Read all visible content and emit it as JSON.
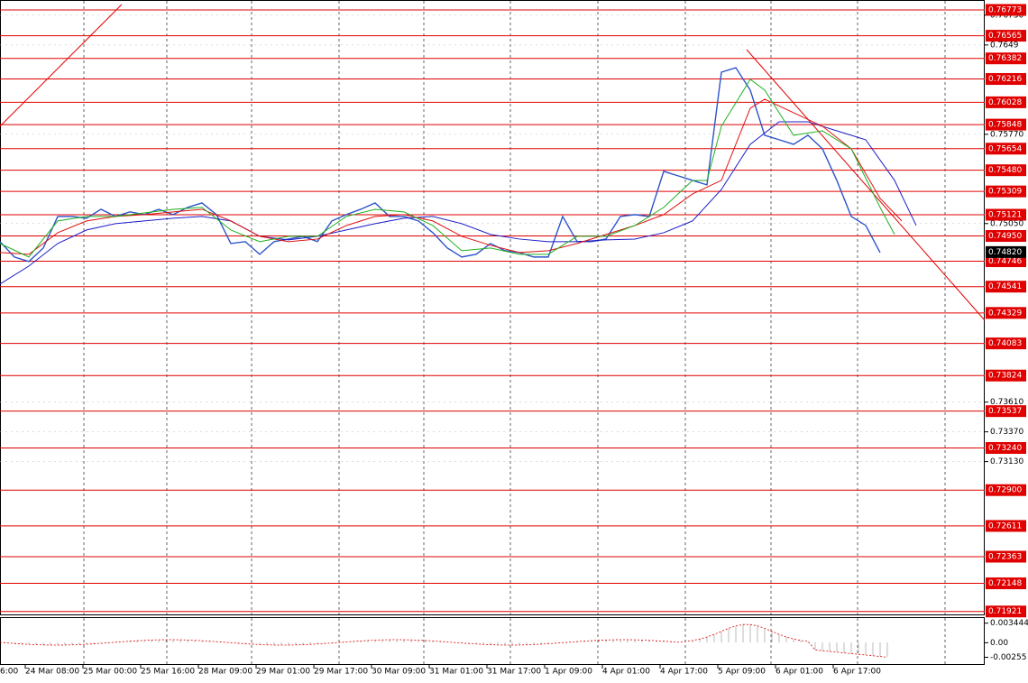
{
  "chart_data": {
    "type": "line",
    "xlim": [
      -7,
      266
    ],
    "xticks": [
      {
        "value": -16,
        "label": "6:00"
      },
      {
        "value": 0,
        "label": "24 Mar 08:00"
      },
      {
        "value": 16,
        "label": "25 Mar 00:00"
      },
      {
        "value": 32,
        "label": "25 Mar 16:00"
      },
      {
        "value": 48,
        "label": "28 Mar 09:00"
      },
      {
        "value": 64,
        "label": "29 Mar 01:00"
      },
      {
        "value": 80,
        "label": "29 Mar 17:00"
      },
      {
        "value": 96,
        "label": "30 Mar 09:00"
      },
      {
        "value": 112,
        "label": "31 Mar 01:00"
      },
      {
        "value": 128,
        "label": "31 Mar 17:00"
      },
      {
        "value": 144,
        "label": "1 Apr 09:00"
      },
      {
        "value": 160,
        "label": "4 Apr 01:00"
      },
      {
        "value": 176,
        "label": "4 Apr 17:00"
      },
      {
        "value": 192,
        "label": "5 Apr 09:00"
      },
      {
        "value": 208,
        "label": "6 Apr 01:00"
      },
      {
        "value": 224,
        "label": "6 Apr 17:00"
      }
    ],
    "ylim": [
      0.7189,
      0.76853
    ],
    "yticks": [
      {
        "value": 0.7673,
        "label": "0.76730"
      },
      0.7649,
      {
        "value": 0.7577,
        "label": "0.75770"
      },
      {
        "value": 0.7505,
        "label": "0.75050"
      },
      {
        "value": 0.7361,
        "label": "0.73610"
      },
      {
        "value": 0.7337,
        "label": "0.73370"
      },
      {
        "value": 0.7313,
        "label": "0.73130"
      }
    ],
    "grid": true,
    "x": [
      -7,
      -3,
      1,
      5,
      9,
      13,
      17,
      21,
      25,
      29,
      33,
      37,
      41,
      45,
      49,
      53,
      57,
      61,
      65,
      69,
      73,
      77,
      81,
      85,
      89,
      93,
      97,
      101,
      105,
      109,
      113,
      117,
      121,
      125,
      129,
      133,
      137,
      141,
      145,
      149,
      153,
      157,
      161,
      165,
      169,
      173,
      177,
      181,
      185,
      189,
      193,
      197,
      201,
      205,
      209,
      213,
      217,
      221,
      225,
      229,
      233,
      237
    ],
    "series": [
      {
        "color": "#2e54c8",
        "values": [
          0.74904,
          0.7478,
          0.74744,
          0.74853,
          0.75107,
          0.75107,
          0.75093,
          0.75165,
          0.75107,
          0.75144,
          0.75122,
          0.75165,
          0.75122,
          0.7518,
          0.75216,
          0.75122,
          0.74889,
          0.74904,
          0.74802,
          0.74904,
          0.74925,
          0.74947,
          0.74904,
          0.75071,
          0.75122,
          0.75165,
          0.75216,
          0.75107,
          0.75107,
          0.75071,
          0.74976,
          0.74853,
          0.7478,
          0.74802,
          0.74889,
          0.74831,
          0.74816,
          0.7478,
          0.7478,
          0.75107,
          0.74904,
          0.74904,
          0.74925,
          0.75107,
          0.75122,
          0.75107,
          0.75471,
          0.75435,
          0.75398,
          0.75362,
          0.76271,
          0.76307,
          0.76126,
          0.75762,
          0.75726,
          0.75689,
          0.75762,
          0.75653,
          0.75398,
          0.75107,
          0.75035,
          0.74816
        ]
      },
      {
        "color": "#1c1cc8",
        "x": [
          -7,
          1,
          9,
          17,
          25,
          33,
          41,
          49,
          57,
          65,
          73,
          81,
          89,
          97,
          105,
          113,
          121,
          129,
          137,
          145,
          153,
          161,
          169,
          177,
          185,
          193,
          201,
          209,
          217,
          225,
          233,
          241,
          247
        ],
        "values": [
          0.74562,
          0.74707,
          0.74889,
          0.74998,
          0.75049,
          0.75071,
          0.75093,
          0.75107,
          0.75071,
          0.74947,
          0.74918,
          0.74947,
          0.74998,
          0.75049,
          0.75093,
          0.75107,
          0.75049,
          0.74962,
          0.74925,
          0.74904,
          0.74904,
          0.74918,
          0.74925,
          0.74976,
          0.75071,
          0.75325,
          0.75689,
          0.75871,
          0.75871,
          0.75798,
          0.75726,
          0.75398,
          0.75034
        ]
      },
      {
        "color": "#e01010",
        "x": [
          -7,
          1,
          9,
          17,
          25,
          33,
          41,
          49,
          57,
          65,
          73,
          81,
          89,
          97,
          105,
          113,
          121,
          129,
          137,
          145,
          153,
          161,
          169,
          177,
          185,
          193,
          201,
          205,
          213,
          221,
          229,
          237,
          243
        ],
        "values": [
          0.74816,
          0.74802,
          0.74976,
          0.75071,
          0.75107,
          0.75122,
          0.75144,
          0.75165,
          0.75071,
          0.74947,
          0.74904,
          0.74925,
          0.75034,
          0.75107,
          0.75122,
          0.75071,
          0.74947,
          0.74874,
          0.74816,
          0.74831,
          0.74889,
          0.74962,
          0.75034,
          0.75122,
          0.75289,
          0.75398,
          0.7598,
          0.76053,
          0.75944,
          0.75835,
          0.75653,
          0.75253,
          0.75071
        ]
      },
      {
        "color": "#20b020",
        "x": [
          -7,
          1,
          9,
          17,
          25,
          33,
          41,
          49,
          57,
          65,
          73,
          81,
          89,
          97,
          105,
          113,
          121,
          129,
          137,
          145,
          153,
          161,
          169,
          177,
          185,
          189,
          193,
          201,
          205,
          213,
          221,
          229,
          237,
          241
        ],
        "values": [
          0.74889,
          0.7478,
          0.75071,
          0.75107,
          0.75107,
          0.75136,
          0.75165,
          0.7518,
          0.74998,
          0.74904,
          0.74947,
          0.74947,
          0.75107,
          0.75165,
          0.75144,
          0.75034,
          0.74831,
          0.74853,
          0.74802,
          0.74802,
          0.74947,
          0.74947,
          0.75034,
          0.7518,
          0.75398,
          0.75398,
          0.75835,
          0.76213,
          0.76126,
          0.75762,
          0.75798,
          0.75653,
          0.7518,
          0.74962
        ]
      }
    ],
    "levels": [
      0.76773,
      0.76565,
      0.76382,
      0.76216,
      0.76028,
      0.75848,
      0.75654,
      {
        "value": 0.7548,
        "label": "0.75480"
      },
      0.75309,
      0.75121,
      {
        "value": 0.7495,
        "label": "0.74950"
      },
      0.74746,
      0.74541,
      0.74329,
      0.74083,
      0.73824,
      0.73537,
      {
        "value": 0.7324,
        "label": "0.73240"
      },
      {
        "value": 0.729,
        "label": "0.72900"
      },
      0.72611,
      0.72363,
      0.72148,
      0.71921
    ],
    "level_color": "#e00000",
    "current_price": {
      "value": 0.7482,
      "label": "0.74820"
    }
  },
  "indicator": {
    "ylim": [
      -0.0039,
      0.0045
    ],
    "yticks": [
      0.003444,
      {
        "value": 0,
        "label": "0.00"
      },
      -0.00255
    ]
  }
}
